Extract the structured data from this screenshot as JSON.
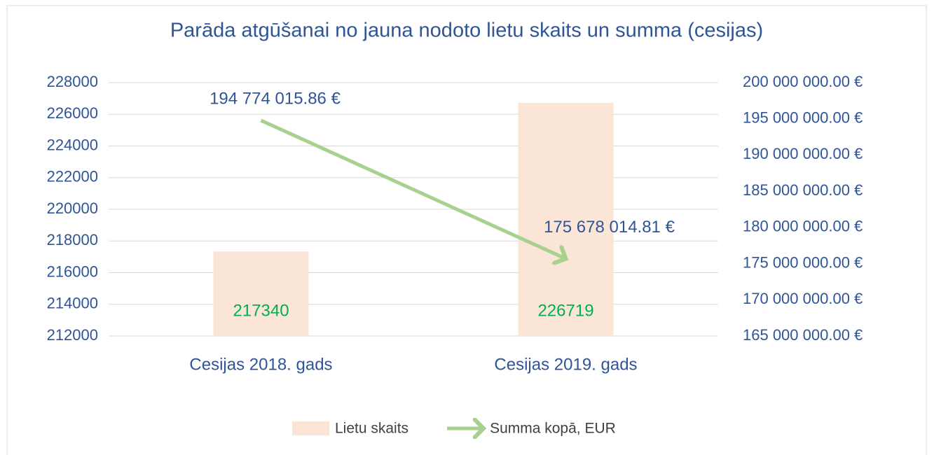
{
  "chart_data": {
    "type": "bar",
    "title": "Parāda atgūšanai no jauna nodoto lietu skaits un summa (cesijas)",
    "categories": [
      "Cesijas 2018. gads",
      "Cesijas 2019. gads"
    ],
    "series": [
      {
        "name": "Lietu skaits",
        "type": "bar",
        "color": "#fbe5d6",
        "label_color": "#00b050",
        "values": [
          217340,
          226719
        ]
      },
      {
        "name": "Summa kopā, EUR",
        "type": "line",
        "axis": "y2",
        "color": "#a9d18e",
        "values": [
          194774015.86,
          175678014.81
        ],
        "value_labels": [
          "194 774 015.86 €",
          "175 678 014.81 €"
        ]
      }
    ],
    "ylim": [
      212000,
      228000
    ],
    "yticks": [
      212000,
      214000,
      216000,
      218000,
      220000,
      222000,
      224000,
      226000,
      228000
    ],
    "y2lim": [
      165000000,
      200000000
    ],
    "y2ticks": [
      {
        "value": 165000000,
        "label": "165 000 000.00 €"
      },
      {
        "value": 170000000,
        "label": "170 000 000.00 €"
      },
      {
        "value": 175000000,
        "label": "175 000 000.00 €"
      },
      {
        "value": 180000000,
        "label": "180 000 000.00 €"
      },
      {
        "value": 185000000,
        "label": "185 000 000.00 €"
      },
      {
        "value": 190000000,
        "label": "190 000 000.00 €"
      },
      {
        "value": 195000000,
        "label": "195 000 000.00 €"
      },
      {
        "value": 200000000,
        "label": "200 000 000.00 €"
      }
    ],
    "grid": true,
    "legend": "bottom"
  }
}
